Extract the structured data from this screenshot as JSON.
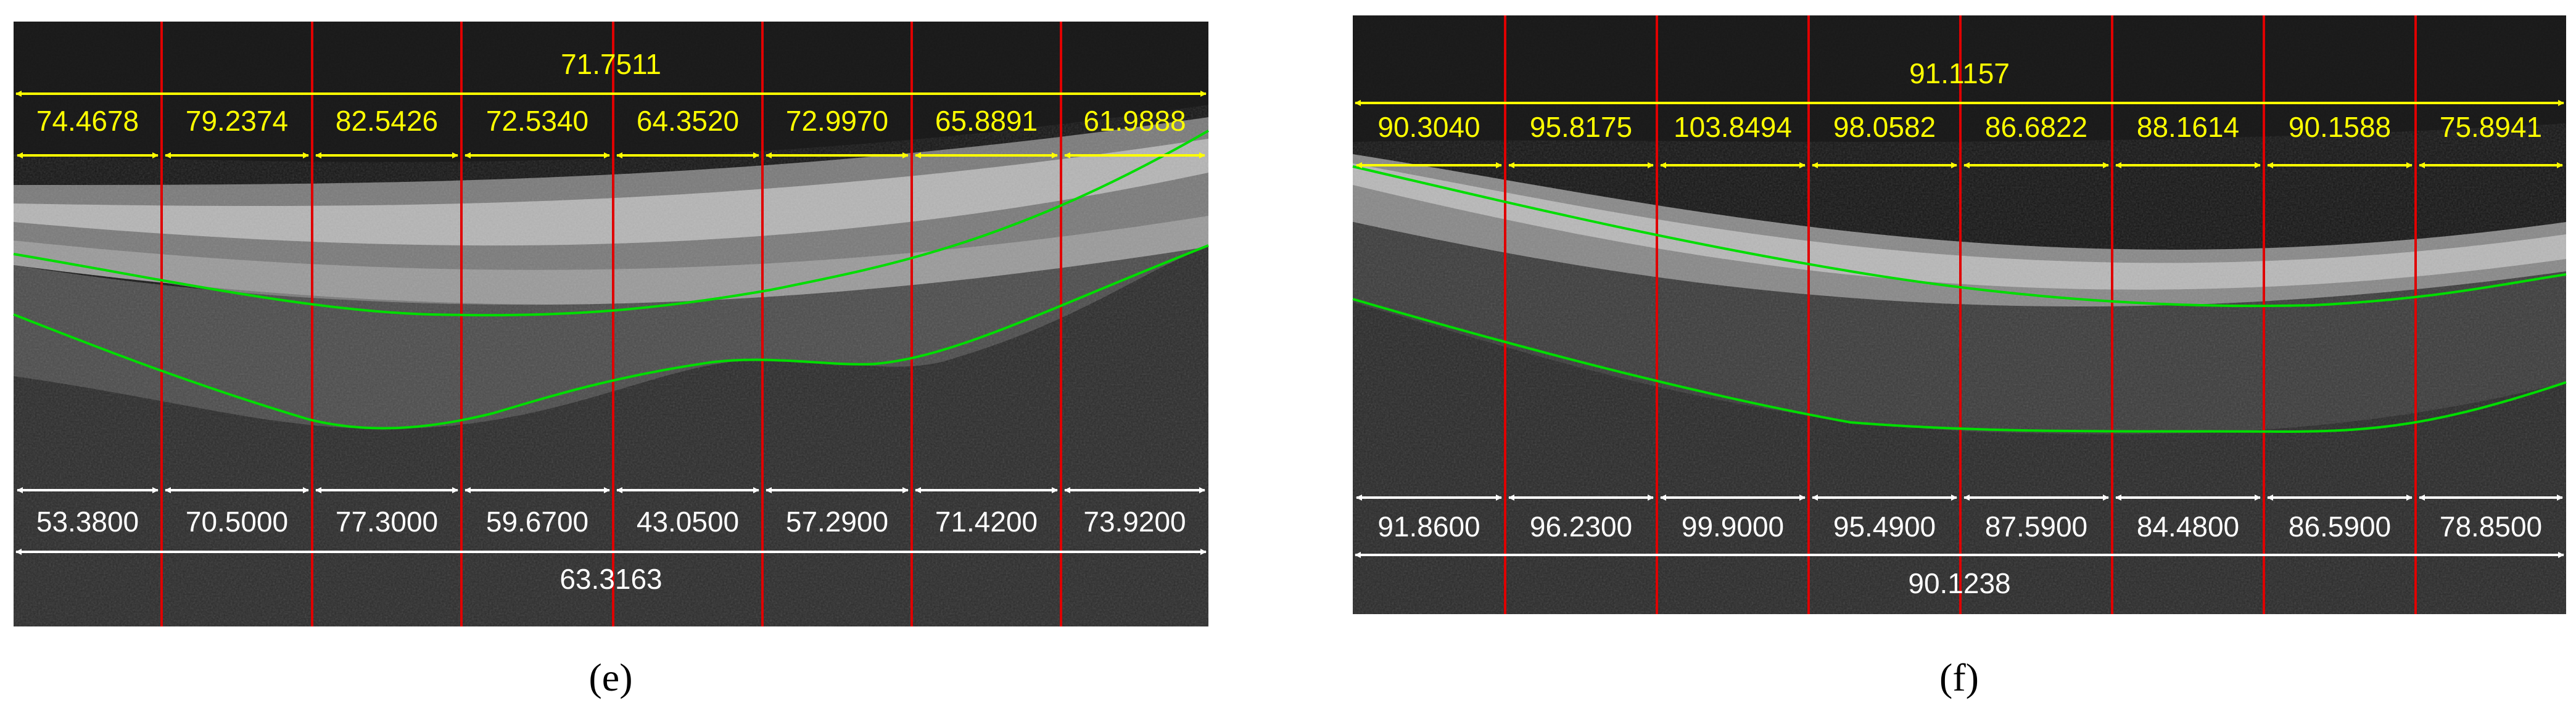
{
  "colors": {
    "yellow": "#ffff00",
    "white": "#ffffff",
    "red": "#e00000",
    "green": "#00dd00",
    "scan_dark": "#141414",
    "scan_band": "#8a8a8a"
  },
  "panels": [
    {
      "id": "e",
      "caption": "(e)",
      "top_overall": "71.7511",
      "top_values": [
        "74.4678",
        "79.2374",
        "82.5426",
        "72.5340",
        "64.3520",
        "72.9970",
        "65.8891",
        "61.9888"
      ],
      "bottom_values": [
        "53.3800",
        "70.5000",
        "77.3000",
        "59.6700",
        "43.0500",
        "57.2900",
        "71.4200",
        "73.9200"
      ],
      "bottom_overall": "63.3163"
    },
    {
      "id": "f",
      "caption": "(f)",
      "top_overall": "91.1157",
      "top_values": [
        "90.3040",
        "95.8175",
        "103.8494",
        "98.0582",
        "86.6822",
        "88.1614",
        "90.1588",
        "75.8941"
      ],
      "bottom_values": [
        "91.8600",
        "96.2300",
        "99.9000",
        "95.4900",
        "87.5900",
        "84.4800",
        "86.5900",
        "78.8500"
      ],
      "bottom_overall": "90.1238"
    }
  ]
}
